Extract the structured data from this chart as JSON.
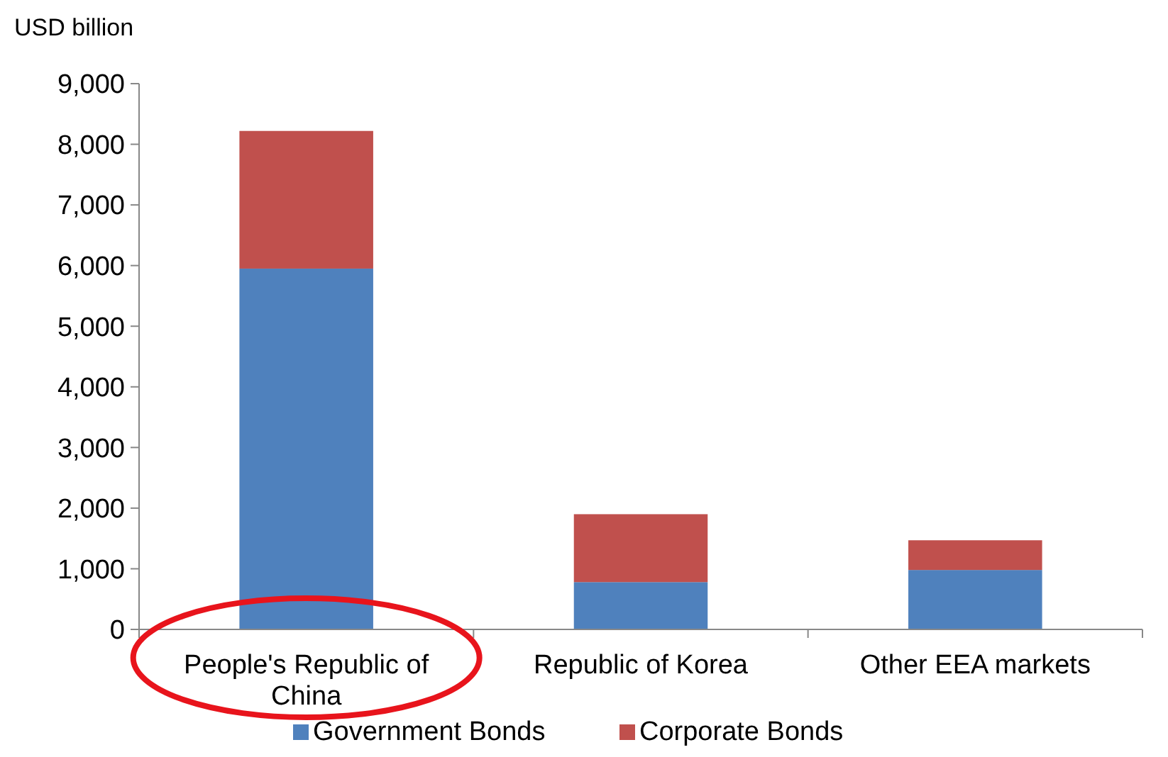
{
  "chart_data": {
    "type": "bar",
    "ylabel": "USD billion",
    "categories": [
      "People's Republic of China",
      "Republic of Korea",
      "Other EEA markets"
    ],
    "stacked": true,
    "series": [
      {
        "name": "Government Bonds",
        "color": "#4f81bd",
        "values": [
          5950,
          780,
          980
        ]
      },
      {
        "name": "Corporate Bonds",
        "color": "#c0504d",
        "values": [
          2270,
          1120,
          490
        ]
      }
    ],
    "ylim": [
      0,
      9000
    ],
    "yticks": [
      {
        "value": 0,
        "label": "0"
      },
      {
        "value": 1000,
        "label": "1,000"
      },
      {
        "value": 2000,
        "label": "2,000"
      },
      {
        "value": 3000,
        "label": "3,000"
      },
      {
        "value": 4000,
        "label": "4,000"
      },
      {
        "value": 5000,
        "label": "5,000"
      },
      {
        "value": 6000,
        "label": "6,000"
      },
      {
        "value": 7000,
        "label": "7,000"
      },
      {
        "value": 8000,
        "label": "8,000"
      },
      {
        "value": 9000,
        "label": "9,000"
      }
    ],
    "legend": "bottom"
  }
}
